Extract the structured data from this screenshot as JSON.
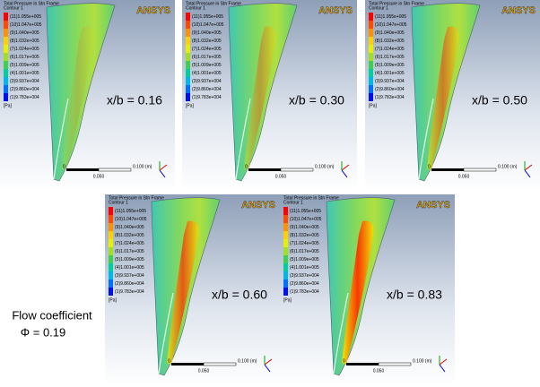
{
  "legend_title": "Total Pressure in Stn Frame",
  "contour_name": "Contour 1",
  "legend_levels": [
    "(11)1.055e+005",
    "(10)1.047e+005",
    "(9)1.040e+005",
    "(8)1.032e+005",
    "(7)1.024e+005",
    "(6)1.017e+005",
    "(5)1.009e+005",
    "(4)1.001e+005",
    "(3)9.937e+004",
    "(2)9.860e+004",
    "(1)9.783e+004"
  ],
  "unit": "[Pa]",
  "logo": "ANSYS",
  "scale_bar": {
    "start": "0",
    "end": "0.100 (m)",
    "mid": "0.050"
  },
  "panels": [
    {
      "label": "x/b = 0.16"
    },
    {
      "label": "x/b = 0.30"
    },
    {
      "label": "x/b = 0.50"
    },
    {
      "label": "x/b = 0.60"
    },
    {
      "label": "x/b = 0.83"
    }
  ],
  "flow_coefficient": {
    "line1": "Flow coefficient",
    "line2": "Φ  = 0.19"
  }
}
